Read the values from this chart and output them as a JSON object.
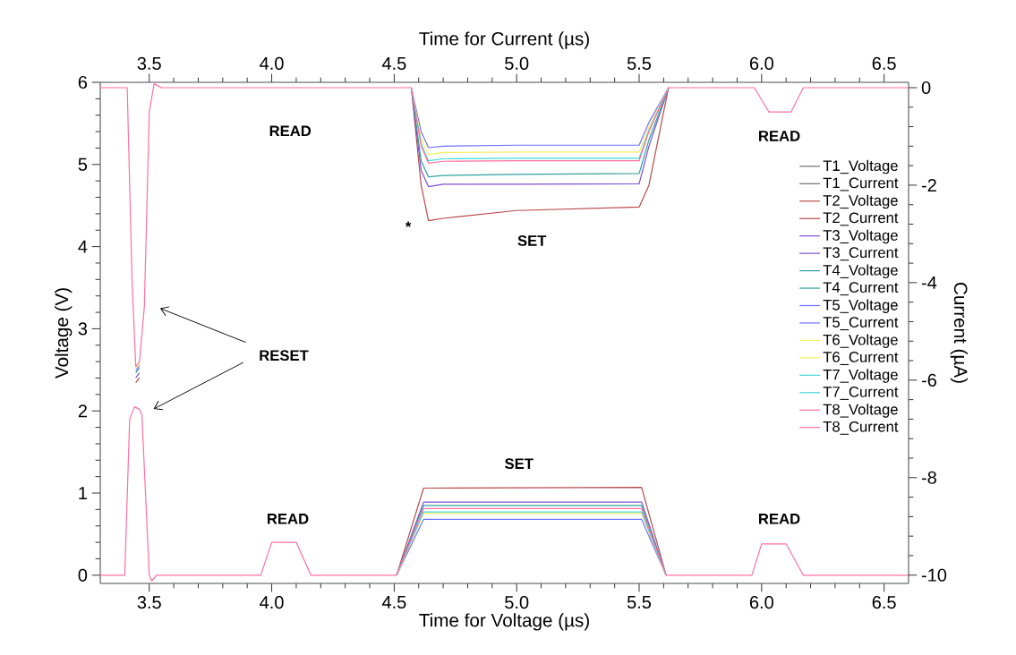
{
  "chart_data": {
    "type": "line",
    "xlabel": "Time for Voltage (µs)",
    "ylabel": "Voltage (V)",
    "x2label": "Time for Current (µs)",
    "y2label": "Current (µA)",
    "xlim": [
      3.3,
      6.6
    ],
    "xticks": [
      3.5,
      {
        "value": 4,
        "label": "4.0"
      },
      4.5,
      {
        "value": 5,
        "label": "5.0"
      },
      5.5,
      {
        "value": 6,
        "label": "6.0"
      },
      6.5
    ],
    "x2lim": [
      3.3,
      6.6
    ],
    "x2ticks": [
      3.5,
      {
        "value": 4,
        "label": "4.0"
      },
      4.5,
      {
        "value": 5,
        "label": "5.0"
      },
      5.5,
      {
        "value": 6,
        "label": "6.0"
      },
      6.5
    ],
    "ylim": [
      -0.1,
      6
    ],
    "yticks": [
      0,
      1,
      2,
      3,
      4,
      5,
      6
    ],
    "y2lim": [
      -10.17,
      0.11
    ],
    "y2ticks": [
      -10,
      -8,
      -6,
      -4,
      -2,
      0
    ],
    "legend": "right",
    "grid": false,
    "annotations": [
      "READ",
      "SET",
      "*",
      "RESET",
      "SET",
      "READ",
      "READ",
      "READ"
    ],
    "series": [
      {
        "name": "T1_Voltage",
        "color": "#6e6e6e"
      },
      {
        "name": "T1_Current",
        "color": "#6e6e6e",
        "axis": "y2"
      },
      {
        "name": "T2_Voltage",
        "color": "#b84a4a",
        "x": [
          4.51,
          4.62,
          5.51,
          5.61
        ],
        "values": [
          0,
          1.06,
          1.07,
          0
        ]
      },
      {
        "name": "T2_Current",
        "color": "#b84a4a",
        "axis": "y2",
        "x": [
          3.445,
          3.46,
          3.5,
          4.57,
          4.61,
          4.64,
          4.7,
          5.0,
          5.5,
          5.54,
          5.62
        ],
        "values": [
          -6.05,
          -5.95,
          null,
          0,
          -2.0,
          -2.73,
          -2.68,
          -2.52,
          -2.45,
          -2.0,
          0
        ]
      },
      {
        "name": "T3_Voltage",
        "color": "#7f4fd0",
        "x": [
          4.51,
          4.62,
          5.51,
          5.61
        ],
        "values": [
          0,
          0.89,
          0.89,
          0
        ]
      },
      {
        "name": "T3_Current",
        "color": "#7f4fd0",
        "axis": "y2",
        "x": [
          3.445,
          3.46,
          3.5,
          4.57,
          4.61,
          4.64,
          4.7,
          5.0,
          5.5,
          5.54,
          5.62
        ],
        "values": [
          -5.95,
          -5.85,
          null,
          0,
          -1.7,
          -2.03,
          -1.98,
          -1.98,
          -1.97,
          -1.2,
          0
        ]
      },
      {
        "name": "T4_Voltage",
        "color": "#30a0a0",
        "x": [
          4.51,
          4.62,
          5.51,
          5.61
        ],
        "values": [
          0,
          0.85,
          0.85,
          0
        ]
      },
      {
        "name": "T4_Current",
        "color": "#30a0a0",
        "axis": "y2",
        "x": [
          3.445,
          3.46,
          3.5,
          4.57,
          4.61,
          4.64,
          4.7,
          5.0,
          5.5,
          5.54,
          5.62
        ],
        "values": [
          -5.85,
          -5.75,
          null,
          0,
          -1.5,
          -1.83,
          -1.8,
          -1.78,
          -1.76,
          -1.07,
          0
        ]
      },
      {
        "name": "T5_Voltage",
        "color": "#7070ff",
        "x": [
          4.51,
          4.62,
          5.51,
          5.61
        ],
        "values": [
          0,
          0.68,
          0.68,
          0
        ]
      },
      {
        "name": "T5_Current",
        "color": "#7070ff",
        "axis": "y2",
        "x": [
          3.445,
          3.46,
          3.5,
          4.57,
          4.61,
          4.64,
          4.7,
          5.0,
          5.5,
          5.54,
          5.62
        ],
        "values": [
          -5.8,
          -5.7,
          null,
          0,
          -0.9,
          -1.23,
          -1.2,
          -1.18,
          -1.18,
          -0.71,
          0
        ]
      },
      {
        "name": "T6_Voltage",
        "color": "#f5f060",
        "x": [
          4.51,
          4.62,
          5.51,
          5.61
        ],
        "values": [
          0,
          0.75,
          0.75,
          0
        ]
      },
      {
        "name": "T6_Current",
        "color": "#f5f060",
        "axis": "y2",
        "x": [
          3.445,
          3.46,
          3.5,
          4.57,
          4.61,
          4.64,
          4.7,
          5.0,
          5.5,
          5.54,
          5.62
        ],
        "values": [
          -5.75,
          -5.65,
          null,
          0,
          -1.05,
          -1.37,
          -1.33,
          -1.32,
          -1.32,
          -0.8,
          0
        ]
      },
      {
        "name": "T7_Voltage",
        "color": "#40d8d8",
        "x": [
          4.51,
          4.62,
          5.51,
          5.61
        ],
        "values": [
          0,
          0.77,
          0.77,
          0
        ]
      },
      {
        "name": "T7_Current",
        "color": "#40d8d8",
        "axis": "y2",
        "x": [
          4.57,
          4.61,
          4.64,
          4.7,
          5.0,
          5.5,
          5.54,
          5.62
        ],
        "values": [
          0,
          -1.15,
          -1.5,
          -1.46,
          -1.45,
          -1.45,
          -0.87,
          0
        ]
      },
      {
        "name": "T8_Voltage",
        "color": "#ff6fa0",
        "x": [
          3.3,
          3.4,
          3.42,
          3.44,
          3.46,
          3.47,
          3.5,
          3.51,
          3.53,
          3.955,
          4.0,
          4.1,
          4.16,
          4.51,
          4.62,
          5.51,
          5.61,
          5.96,
          6.0,
          6.1,
          6.17,
          6.6
        ],
        "values": [
          0,
          0,
          1.9,
          2.05,
          2.02,
          1.95,
          0,
          -0.07,
          0,
          0,
          0.4,
          0.4,
          0,
          0,
          0.81,
          0.81,
          0,
          0,
          0.38,
          0.38,
          0,
          0
        ]
      },
      {
        "name": "T8_Current",
        "color": "#ff6fa0",
        "axis": "y2",
        "x": [
          3.3,
          3.41,
          3.43,
          3.445,
          3.46,
          3.48,
          3.5,
          3.52,
          3.55,
          4.57,
          4.61,
          4.64,
          4.7,
          5.0,
          5.5,
          5.54,
          5.62,
          5.97,
          6.03,
          6.12,
          6.17,
          6.6
        ],
        "values": [
          0,
          0,
          -4,
          -5.72,
          -5.62,
          -4.5,
          -0.5,
          0.08,
          0,
          0,
          -1.2,
          -1.55,
          -1.51,
          -1.5,
          -1.5,
          -0.9,
          0,
          0,
          -0.5,
          -0.5,
          0,
          0
        ]
      }
    ]
  }
}
